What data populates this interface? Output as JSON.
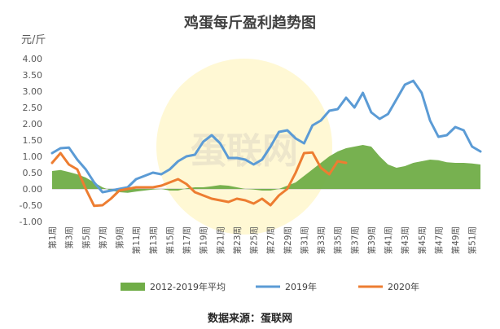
{
  "chart_data": {
    "type": "line",
    "title": "鸡蛋每斤盈利趋势图",
    "ylabel": "元/斤",
    "source": "数据来源：蛋联网",
    "watermark": "蛋联网",
    "ylim": [
      -1.0,
      4.0
    ],
    "yticks": [
      "4.00",
      "3.50",
      "3.00",
      "2.50",
      "2.00",
      "1.50",
      "1.00",
      "0.50",
      "0.00",
      "-0.50",
      "-1.00"
    ],
    "x_labels": [
      "第1周",
      "第3周",
      "第5周",
      "第7周",
      "第9周",
      "第11周",
      "第13周",
      "第15周",
      "第17周",
      "第19周",
      "第21周",
      "第23周",
      "第25周",
      "第27周",
      "第29周",
      "第31周",
      "第33周",
      "第35周",
      "第37周",
      "第39周",
      "第41周",
      "第43周",
      "第45周",
      "第47周",
      "第49周",
      "第51周"
    ],
    "weeks": [
      1,
      2,
      3,
      4,
      5,
      6,
      7,
      8,
      9,
      10,
      11,
      12,
      13,
      14,
      15,
      16,
      17,
      18,
      19,
      20,
      21,
      22,
      23,
      24,
      25,
      26,
      27,
      28,
      29,
      30,
      31,
      32,
      33,
      34,
      35,
      36,
      37,
      38,
      39,
      40,
      41,
      42,
      43,
      44,
      45,
      46,
      47,
      48,
      49,
      50,
      51,
      52
    ],
    "series": [
      {
        "name": "2012-2019年平均",
        "type": "area",
        "color": "#70AD47",
        "values": [
          0.55,
          0.58,
          0.52,
          0.45,
          0.35,
          0.2,
          0.05,
          -0.05,
          -0.1,
          -0.12,
          -0.08,
          -0.05,
          -0.02,
          0.0,
          -0.05,
          -0.05,
          0.02,
          0.05,
          0.05,
          0.08,
          0.12,
          0.1,
          0.05,
          0.0,
          -0.02,
          -0.05,
          -0.05,
          0.0,
          0.1,
          0.2,
          0.4,
          0.6,
          0.8,
          1.0,
          1.15,
          1.25,
          1.3,
          1.35,
          1.3,
          1.0,
          0.75,
          0.65,
          0.7,
          0.8,
          0.85,
          0.9,
          0.88,
          0.82,
          0.8,
          0.8,
          0.78,
          0.75
        ]
      },
      {
        "name": "2019年",
        "type": "line",
        "color": "#5B9BD5",
        "values": [
          1.1,
          1.25,
          1.27,
          0.9,
          0.6,
          0.2,
          -0.1,
          -0.05,
          0.0,
          0.05,
          0.3,
          0.4,
          0.5,
          0.45,
          0.6,
          0.85,
          1.0,
          1.05,
          1.45,
          1.65,
          1.4,
          0.95,
          0.95,
          0.9,
          0.75,
          0.9,
          1.3,
          1.75,
          1.8,
          1.55,
          1.4,
          1.95,
          2.1,
          2.4,
          2.45,
          2.8,
          2.5,
          2.95,
          2.35,
          2.15,
          2.3,
          2.75,
          3.2,
          3.32,
          2.95,
          2.1,
          1.6,
          1.65,
          1.9,
          1.8,
          1.3,
          1.15
        ]
      },
      {
        "name": "2020年",
        "type": "line",
        "color": "#ED7D31",
        "values": [
          0.8,
          1.1,
          0.75,
          0.6,
          0.0,
          -0.52,
          -0.5,
          -0.3,
          -0.05,
          0.0,
          0.05,
          0.05,
          0.05,
          0.1,
          0.2,
          0.3,
          0.15,
          -0.1,
          -0.2,
          -0.3,
          -0.35,
          -0.4,
          -0.3,
          -0.35,
          -0.45,
          -0.3,
          -0.5,
          -0.2,
          0.0,
          0.5,
          1.1,
          1.12,
          0.65,
          0.45,
          0.85,
          0.8
        ]
      }
    ],
    "legend_position": "bottom"
  }
}
